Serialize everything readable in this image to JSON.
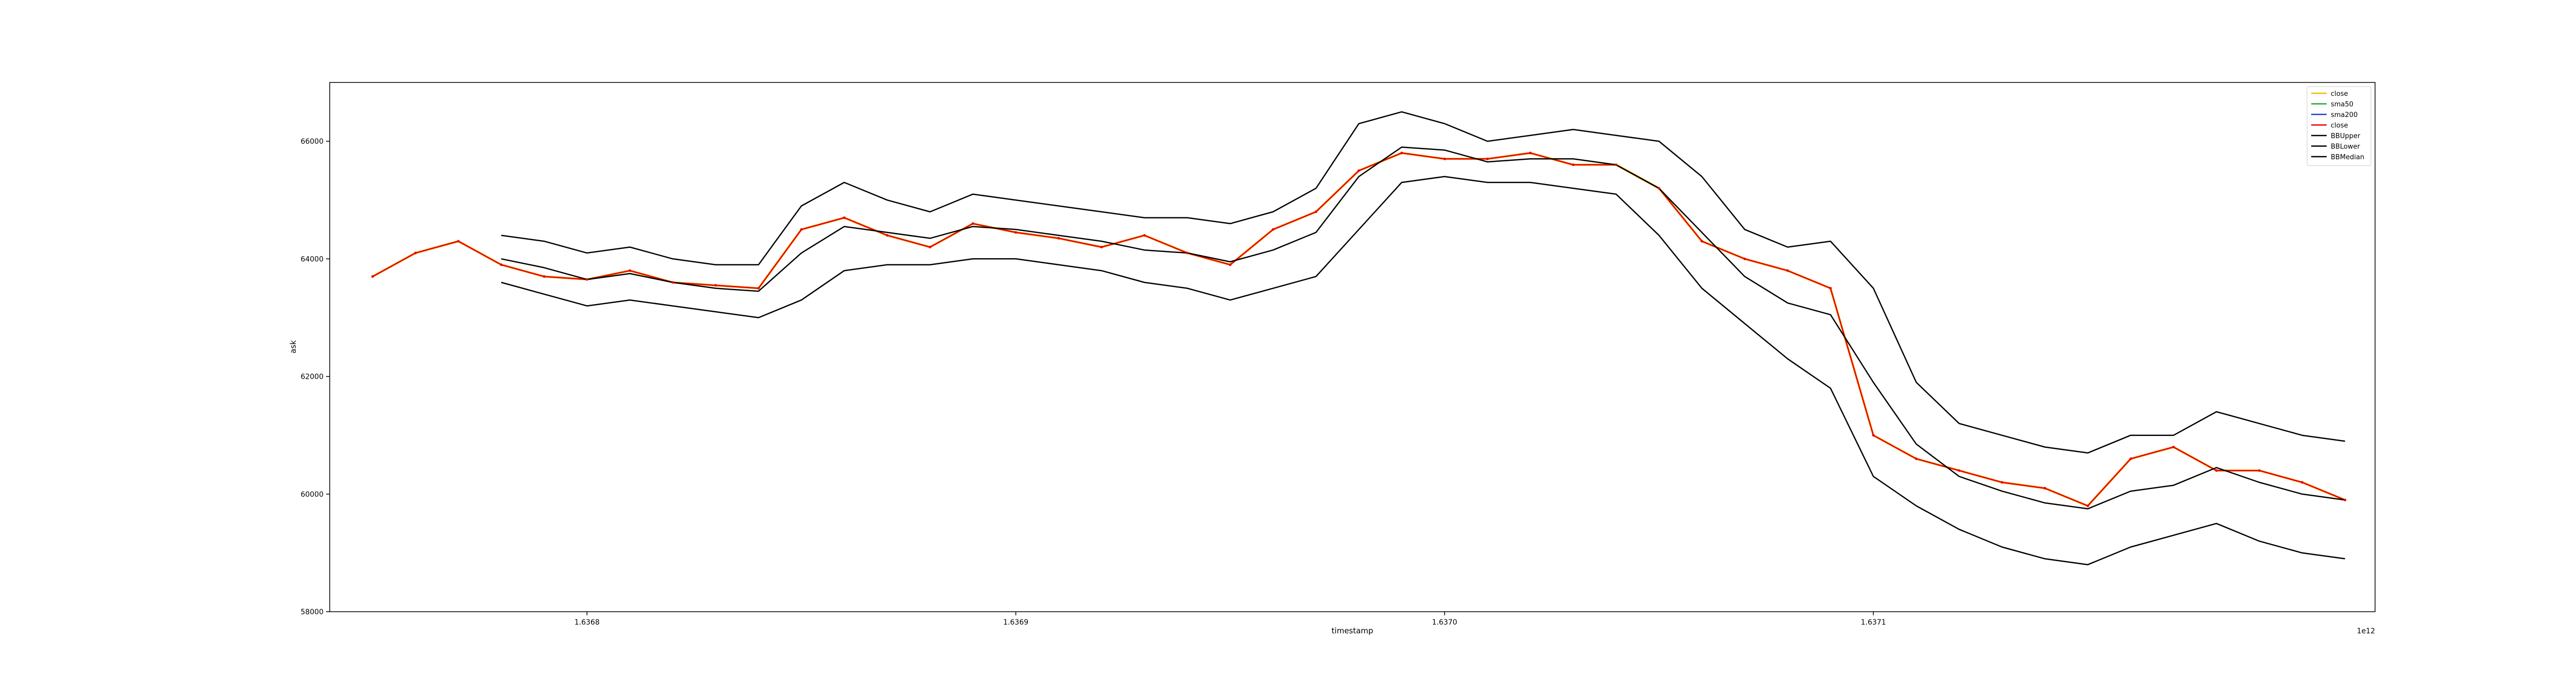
{
  "chart_data": {
    "type": "line",
    "xlabel": "timestamp",
    "ylabel": "ask",
    "x_offset_label": "1e12",
    "xlim": [
      1636740000000.0,
      1637217000000.0
    ],
    "ylim": [
      58000,
      67000
    ],
    "xticks": [
      {
        "value": 1636800000000.0,
        "label": "1.6368"
      },
      {
        "value": 1636900000000.0,
        "label": "1.6369"
      },
      {
        "value": 1637000000000.0,
        "label": "1.6370"
      },
      {
        "value": 1637100000000.0,
        "label": "1.6371"
      }
    ],
    "yticks": [
      {
        "value": 58000,
        "label": "58000"
      },
      {
        "value": 60000,
        "label": "60000"
      },
      {
        "value": 62000,
        "label": "62000"
      },
      {
        "value": 64000,
        "label": "64000"
      },
      {
        "value": 66000,
        "label": "66000"
      }
    ],
    "grid": false,
    "legend_position": "top-right",
    "colors": {
      "close": "#f5b800",
      "sma50": "#2ca02c",
      "sma200": "#1f3fbf",
      "close2": "#e8000b",
      "bb": "#000000"
    },
    "legend": [
      {
        "name": "close",
        "color": "#f5b800"
      },
      {
        "name": "sma50",
        "color": "#2ca02c"
      },
      {
        "name": "sma200",
        "color": "#1f3fbf"
      },
      {
        "name": "close",
        "color": "#e8000b"
      },
      {
        "name": "BBUpper",
        "color": "#000000"
      },
      {
        "name": "BBLower",
        "color": "#000000"
      },
      {
        "name": "BBMedian",
        "color": "#000000"
      }
    ],
    "x": [
      1636750000000.0,
      1636760000000.0,
      1636770000000.0,
      1636780000000.0,
      1636790000000.0,
      1636800000000.0,
      1636810000000.0,
      1636820000000.0,
      1636830000000.0,
      1636840000000.0,
      1636850000000.0,
      1636860000000.0,
      1636870000000.0,
      1636880000000.0,
      1636890000000.0,
      1636900000000.0,
      1636910000000.0,
      1636920000000.0,
      1636930000000.0,
      1636940000000.0,
      1636950000000.0,
      1636960000000.0,
      1636970000000.0,
      1636980000000.0,
      1636990000000.0,
      1637000000000.0,
      1637010000000.0,
      1637020000000.0,
      1637030000000.0,
      1637040000000.0,
      1637050000000.0,
      1637060000000.0,
      1637070000000.0,
      1637080000000.0,
      1637090000000.0,
      1637100000000.0,
      1637110000000.0,
      1637120000000.0,
      1637130000000.0,
      1637140000000.0,
      1637150000000.0,
      1637160000000.0,
      1637170000000.0,
      1637180000000.0,
      1637190000000.0,
      1637200000000.0,
      1637210000000.0
    ],
    "series": [
      {
        "name": "close",
        "values": [
          63700,
          64100,
          64300,
          63900,
          63700,
          63650,
          63800,
          63600,
          63550,
          63500,
          64500,
          64700,
          64400,
          64200,
          64600,
          64450,
          64350,
          64200,
          64400,
          64100,
          63900,
          64500,
          64800,
          65500,
          65800,
          65700,
          65700,
          65800,
          65600,
          65600,
          65200,
          64300,
          64000,
          63800,
          63500,
          61000,
          60600,
          60400,
          60200,
          60100,
          59800,
          60600,
          60800,
          60400,
          60400,
          60200,
          59900
        ]
      },
      {
        "name": "BBUpper",
        "values": [
          null,
          null,
          null,
          64400,
          64300,
          64100,
          64200,
          64000,
          63900,
          63900,
          64900,
          65300,
          65000,
          64800,
          65100,
          65000,
          64900,
          64800,
          64700,
          64700,
          64600,
          64800,
          65200,
          66300,
          66500,
          66300,
          66000,
          66100,
          66200,
          66100,
          66000,
          65400,
          64500,
          64200,
          64300,
          63500,
          61900,
          61200,
          61000,
          60800,
          60700,
          61000,
          61000,
          61400,
          61200,
          61000,
          60900
        ]
      },
      {
        "name": "BBLower",
        "values": [
          null,
          null,
          null,
          63600,
          63400,
          63200,
          63300,
          63200,
          63100,
          63000,
          63300,
          63800,
          63900,
          63900,
          64000,
          64000,
          63900,
          63800,
          63600,
          63500,
          63300,
          63500,
          63700,
          64500,
          65300,
          65400,
          65300,
          65300,
          65200,
          65100,
          64400,
          63500,
          62900,
          62300,
          61800,
          60300,
          59800,
          59400,
          59100,
          58900,
          58800,
          59100,
          59300,
          59500,
          59200,
          59000,
          58900
        ]
      },
      {
        "name": "BBMedian",
        "values": [
          null,
          null,
          null,
          64000,
          63850,
          63650,
          63750,
          63600,
          63500,
          63450,
          64100,
          64550,
          64450,
          64350,
          64550,
          64500,
          64400,
          64300,
          64150,
          64100,
          63950,
          64150,
          64450,
          65400,
          65900,
          65850,
          65650,
          65700,
          65700,
          65600,
          65200,
          64450,
          63700,
          63250,
          63050,
          61900,
          60850,
          60300,
          60050,
          59850,
          59750,
          60050,
          60150,
          60450,
          60200,
          60000,
          59900
        ]
      }
    ]
  }
}
